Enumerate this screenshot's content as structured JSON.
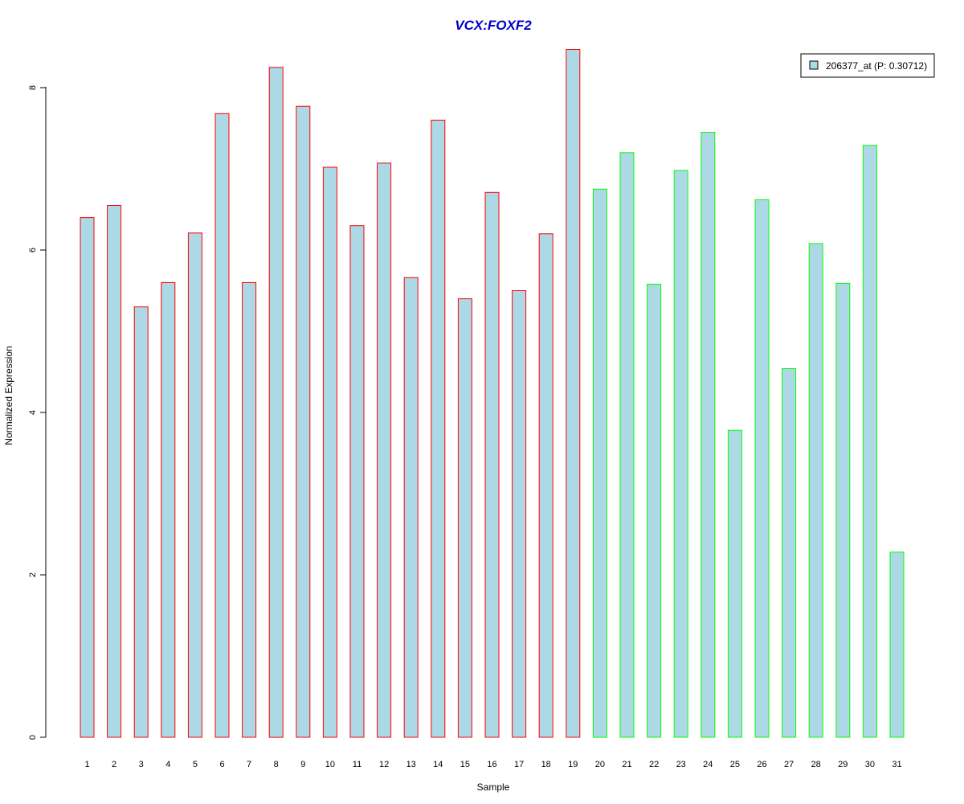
{
  "chart_data": {
    "type": "bar",
    "title": "VCX:FOXF2",
    "xlabel": "Sample",
    "ylabel": "Normalized Expression",
    "ylim": [
      0,
      8.5
    ],
    "yticks": [
      0,
      2,
      4,
      6,
      8
    ],
    "categories": [
      "1",
      "2",
      "3",
      "4",
      "5",
      "6",
      "7",
      "8",
      "9",
      "10",
      "11",
      "12",
      "13",
      "14",
      "15",
      "16",
      "17",
      "18",
      "19",
      "20",
      "21",
      "22",
      "23",
      "24",
      "25",
      "26",
      "27",
      "28",
      "29",
      "30",
      "31"
    ],
    "series": [
      {
        "name": "206377_at (P: 0.30712)",
        "values": [
          6.4,
          6.55,
          5.3,
          5.6,
          6.21,
          7.68,
          5.6,
          8.25,
          7.77,
          7.02,
          6.3,
          7.07,
          5.66,
          7.6,
          5.4,
          6.71,
          5.5,
          6.2,
          8.47,
          6.75,
          7.2,
          5.58,
          6.98,
          7.45,
          3.78,
          6.62,
          4.54,
          6.08,
          5.59,
          7.29,
          2.28
        ]
      }
    ],
    "groups": [
      {
        "from": 1,
        "to": 19,
        "border_color": "#ff0000"
      },
      {
        "from": 20,
        "to": 31,
        "border_color": "#00ff00"
      }
    ],
    "bar_fill": "#add8e6",
    "title_color": "#0000cc",
    "legend": {
      "placement": "top-right",
      "label": "206377_at (P: 0.30712)"
    },
    "grid": false
  }
}
